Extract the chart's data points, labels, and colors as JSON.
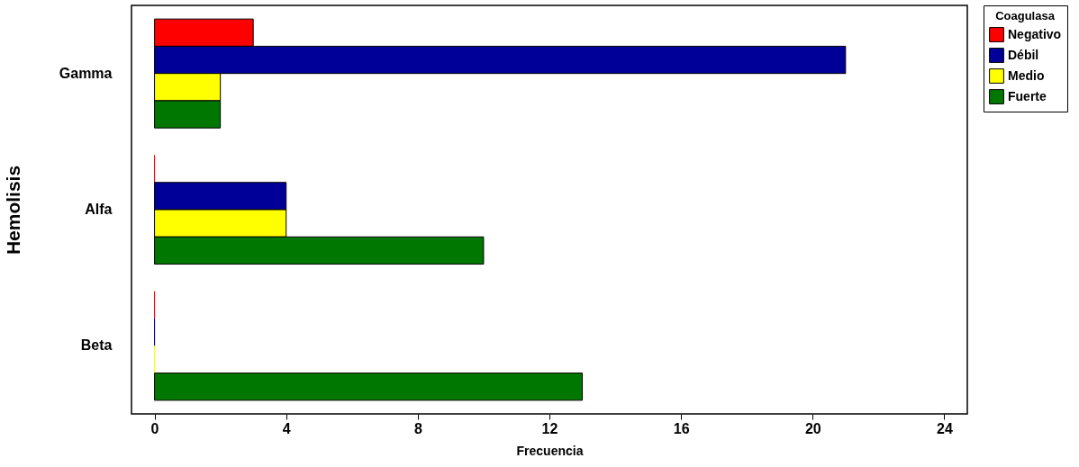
{
  "chart_data": {
    "type": "bar",
    "orientation": "horizontal",
    "xlabel": "Frecuencia",
    "ylabel": "Hemolisis",
    "legend_title": "Coagulasa",
    "legend": "top right",
    "grid": false,
    "categories": [
      "Gamma",
      "Alfa",
      "Beta"
    ],
    "series": [
      {
        "name": "Negativo",
        "color": "#ff0000",
        "values": [
          3,
          0,
          0
        ]
      },
      {
        "name": "Débil",
        "color": "#000099",
        "values": [
          21,
          4,
          0
        ]
      },
      {
        "name": "Medio",
        "color": "#ffff00",
        "values": [
          2,
          4,
          0
        ]
      },
      {
        "name": "Fuerte",
        "color": "#007700",
        "values": [
          2,
          10,
          13
        ]
      }
    ],
    "xlim": [
      -0.7,
      24.7
    ],
    "xticks": [
      0,
      4,
      8,
      12,
      16,
      20,
      24
    ]
  }
}
